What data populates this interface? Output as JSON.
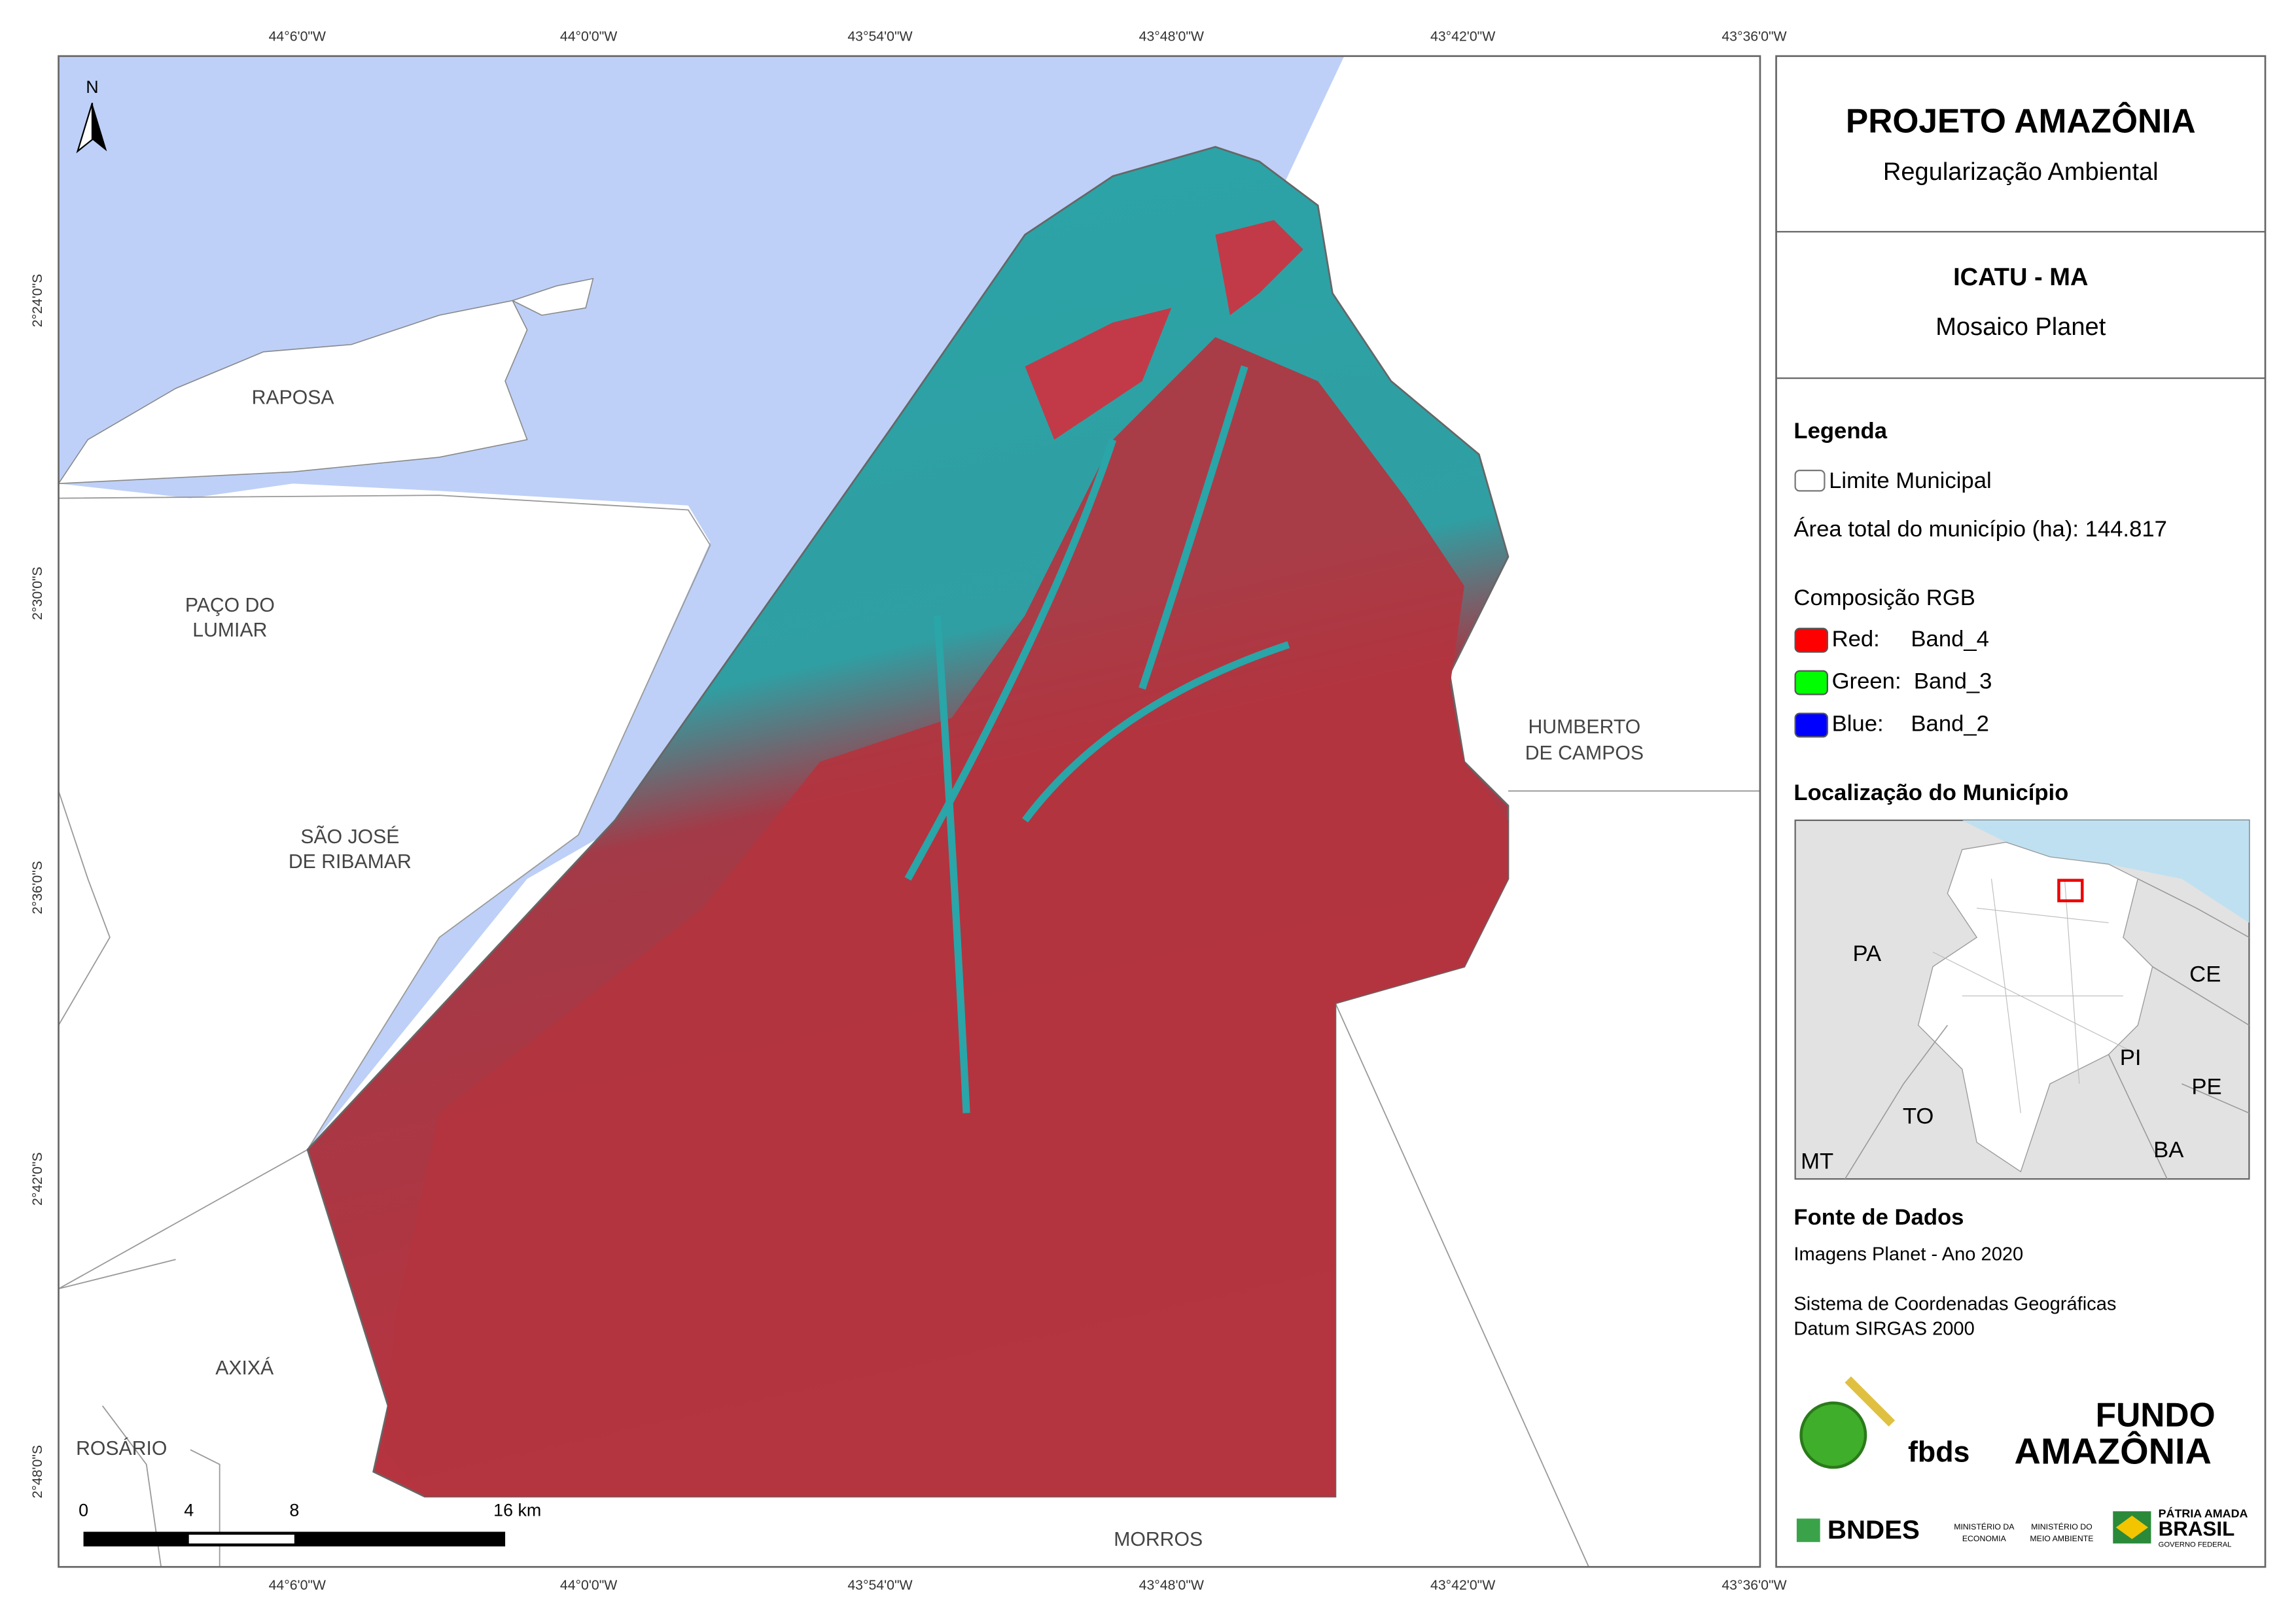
{
  "map": {
    "graticule": {
      "longitudes": [
        "44°6'0\"W",
        "44°0'0\"W",
        "43°54'0\"W",
        "43°48'0\"W",
        "43°42'0\"W",
        "43°36'0\"W"
      ],
      "latitudes": [
        "2°24'0\"S",
        "2°30'0\"S",
        "2°36'0\"S",
        "2°42'0\"S",
        "2°48'0\"S"
      ]
    },
    "north_arrow": "N",
    "places": [
      {
        "lines": [
          "RAPOSA"
        ]
      },
      {
        "lines": [
          "PAÇO DO",
          "LUMIAR"
        ]
      },
      {
        "lines": [
          "SÃO JOSÉ",
          "DE RIBAMAR"
        ]
      },
      {
        "lines": [
          "HUMBERTO",
          "DE CAMPOS"
        ]
      },
      {
        "lines": [
          "AXIXÁ"
        ]
      },
      {
        "lines": [
          "ROSÁRIO"
        ]
      },
      {
        "lines": [
          "MORROS"
        ]
      }
    ],
    "scale_bar": [
      "0",
      "4",
      "8",
      "16 km"
    ]
  },
  "panel": {
    "title": "PROJETO AMAZÔNIA",
    "subtitle": "Regularização Ambiental",
    "municipality": "ICATU - MA",
    "product": "Mosaico Planet",
    "legend": {
      "heading": "Legenda",
      "boundary": "Limite Municipal",
      "area": "Área total do município (ha): 144.817",
      "rgb_heading": "Composição RGB",
      "rgb": [
        {
          "label": "Red:",
          "band": "Band_4",
          "color": "#ff0000"
        },
        {
          "label": "Green:",
          "band": "Band_3",
          "color": "#00ff00"
        },
        {
          "label": "Blue:",
          "band": "Band_2",
          "color": "#0000ff"
        }
      ]
    },
    "location": {
      "heading": "Localização do Município",
      "labels": [
        "PA",
        "CE",
        "PI",
        "PE",
        "TO",
        "BA",
        "MT"
      ]
    },
    "sources": {
      "heading": "Fonte de Dados",
      "lines": [
        "Imagens Planet - Ano 2020",
        "Sistema de Coordenadas Geográficas",
        "Datum SIRGAS 2000"
      ]
    },
    "logos": {
      "fbds": "fbds",
      "fundo": [
        "FUNDO",
        "AMAZÔNIA"
      ],
      "bndes": "BNDES",
      "ministry_economy": [
        "MINISTÉRIO DA",
        "ECONOMIA"
      ],
      "ministry_environment": [
        "MINISTÉRIO DO",
        "MEIO AMBIENTE"
      ],
      "government": [
        "PÁTRIA AMADA",
        "BRASIL",
        "GOVERNO FEDERAL"
      ]
    }
  }
}
